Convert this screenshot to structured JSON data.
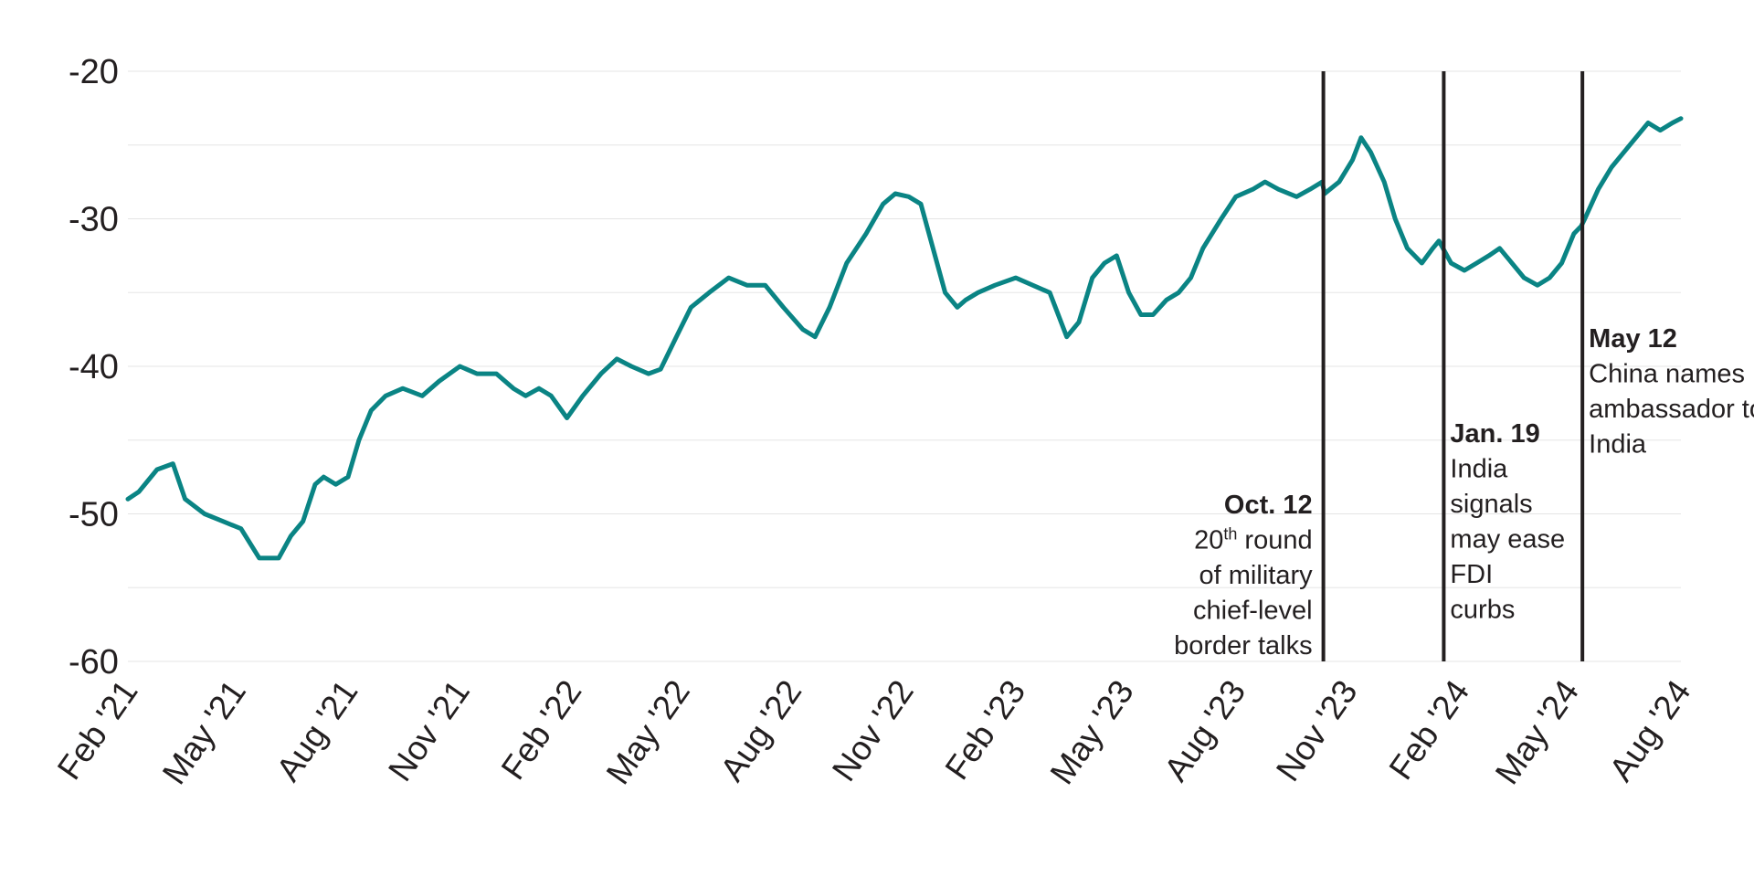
{
  "colors": {
    "series": "#0a8484",
    "event_line": "#231f20",
    "grid": "#e5e5e5",
    "text": "#231f20"
  },
  "chart_data": {
    "type": "line",
    "title": "",
    "xlabel": "",
    "ylabel": "",
    "ylim": [
      -60,
      -20
    ],
    "xlim": [
      "2021-02-01",
      "2024-08-01"
    ],
    "y_ticks": [
      -20,
      -30,
      -40,
      -50,
      -60
    ],
    "y_tick_labels": [
      "-20",
      "-30",
      "-40",
      "-50",
      "-60"
    ],
    "x_ticks": [
      "2021-02-01",
      "2021-05-01",
      "2021-08-01",
      "2021-11-01",
      "2022-02-01",
      "2022-05-01",
      "2022-08-01",
      "2022-11-01",
      "2023-02-01",
      "2023-05-01",
      "2023-08-01",
      "2023-11-01",
      "2024-02-01",
      "2024-05-01",
      "2024-08-01"
    ],
    "x_tick_labels": [
      "Feb '21",
      "May '21",
      "Aug '21",
      "Nov '21",
      "Feb '22",
      "May '22",
      "Aug '22",
      "Nov '22",
      "Feb '23",
      "May '23",
      "Aug '23",
      "Nov '23",
      "Feb '24",
      "May '24",
      "Aug '24"
    ],
    "grid": true,
    "legend": "none",
    "series": [
      {
        "color": "#0a8484",
        "x": [
          "2021-02-01",
          "2021-02-10",
          "2021-02-25",
          "2021-03-10",
          "2021-03-20",
          "2021-04-05",
          "2021-04-20",
          "2021-05-05",
          "2021-05-20",
          "2021-06-05",
          "2021-06-15",
          "2021-06-25",
          "2021-07-05",
          "2021-07-12",
          "2021-07-22",
          "2021-08-01",
          "2021-08-10",
          "2021-08-20",
          "2021-09-01",
          "2021-09-15",
          "2021-10-01",
          "2021-10-15",
          "2021-11-01",
          "2021-11-15",
          "2021-12-01",
          "2021-12-15",
          "2021-12-25",
          "2022-01-05",
          "2022-01-15",
          "2022-01-28",
          "2022-02-10",
          "2022-02-25",
          "2022-03-10",
          "2022-03-22",
          "2022-04-05",
          "2022-04-15",
          "2022-04-28",
          "2022-05-10",
          "2022-05-25",
          "2022-06-10",
          "2022-06-25",
          "2022-07-10",
          "2022-07-25",
          "2022-08-10",
          "2022-08-20",
          "2022-09-01",
          "2022-09-15",
          "2022-10-01",
          "2022-10-15",
          "2022-10-25",
          "2022-11-05",
          "2022-11-15",
          "2022-11-25",
          "2022-12-05",
          "2022-12-15",
          "2022-12-22",
          "2023-01-01",
          "2023-01-15",
          "2023-02-01",
          "2023-02-15",
          "2023-03-01",
          "2023-03-15",
          "2023-03-25",
          "2023-04-05",
          "2023-04-15",
          "2023-04-25",
          "2023-05-05",
          "2023-05-15",
          "2023-05-25",
          "2023-06-05",
          "2023-06-15",
          "2023-06-25",
          "2023-07-05",
          "2023-07-20",
          "2023-08-01",
          "2023-08-15",
          "2023-08-25",
          "2023-09-05",
          "2023-09-20",
          "2023-10-01",
          "2023-10-11",
          "2023-10-13",
          "2023-10-25",
          "2023-11-05",
          "2023-11-12",
          "2023-11-20",
          "2023-12-01",
          "2023-12-10",
          "2023-12-20",
          "2024-01-01",
          "2024-01-10",
          "2024-01-15",
          "2024-01-25",
          "2024-02-05",
          "2024-02-15",
          "2024-02-25",
          "2024-03-05",
          "2024-03-15",
          "2024-03-25",
          "2024-04-05",
          "2024-04-15",
          "2024-04-25",
          "2024-05-05",
          "2024-05-11",
          "2024-05-14",
          "2024-05-25",
          "2024-06-05",
          "2024-06-15",
          "2024-06-25",
          "2024-07-05",
          "2024-07-15",
          "2024-07-25",
          "2024-08-01"
        ],
        "y": [
          -49,
          -48.5,
          -47,
          -46.6,
          -49,
          -50,
          -50.5,
          -51,
          -53,
          -53,
          -51.5,
          -50.5,
          -48,
          -47.5,
          -48,
          -47.5,
          -45,
          -43,
          -42,
          -41.5,
          -42,
          -41,
          -40,
          -40.5,
          -40.5,
          -41.5,
          -42,
          -41.5,
          -42,
          -43.5,
          -42,
          -40.5,
          -39.5,
          -40,
          -40.5,
          -40.2,
          -38,
          -36,
          -35,
          -34,
          -34.5,
          -34.5,
          -36,
          -37.5,
          -38,
          -36,
          -33,
          -31,
          -29,
          -28.3,
          -28.5,
          -29,
          -32,
          -35,
          -36,
          -35.5,
          -35,
          -34.5,
          -34,
          -34.5,
          -35,
          -38,
          -37,
          -34,
          -33,
          -32.5,
          -35,
          -36.5,
          -36.5,
          -35.5,
          -35,
          -34,
          -32,
          -30,
          -28.5,
          -28,
          -27.5,
          -28,
          -28.5,
          -28,
          -27.5,
          -28.3,
          -27.5,
          -26,
          -24.5,
          -25.5,
          -27.5,
          -30,
          -32,
          -33,
          -32,
          -31.5,
          -33,
          -33.5,
          -33,
          -32.5,
          -32,
          -33,
          -34,
          -34.5,
          -34,
          -33,
          -31,
          -30.5,
          -30,
          -28,
          -26.5,
          -25.5,
          -24.5,
          -23.5,
          -24,
          -23.5,
          -23.2
        ]
      }
    ],
    "annotations": [
      {
        "date": "2023-10-12",
        "title": "Oct. 12",
        "lines": [
          "20th round",
          "of military",
          "chief-level",
          "border talks"
        ],
        "align": "left-of-line"
      },
      {
        "date": "2024-01-19",
        "title": "Jan. 19",
        "lines": [
          "India",
          "signals",
          "may ease",
          "FDI",
          "curbs"
        ],
        "align": "right-of-line"
      },
      {
        "date": "2024-05-12",
        "title": "May 12",
        "lines": [
          "China names",
          "ambassador to",
          "India"
        ],
        "align": "right-of-line"
      }
    ]
  }
}
